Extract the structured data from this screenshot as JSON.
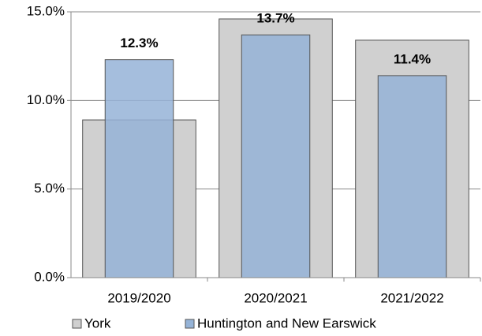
{
  "chart_data": {
    "type": "bar",
    "categories": [
      "2019/2020",
      "2020/2021",
      "2021/2022"
    ],
    "series": [
      {
        "name": "York",
        "color": "#d0d0d0",
        "values": [
          8.9,
          14.6,
          13.4
        ]
      },
      {
        "name": "Huntington and New Earswick",
        "color": "#95b3d7",
        "values": [
          12.3,
          13.7,
          11.4
        ],
        "value_labels": [
          "12.3%",
          "13.7%",
          "11.4%"
        ]
      }
    ],
    "ylim": [
      0,
      15
    ],
    "yticks": [
      {
        "value": 0,
        "label": "0.0%"
      },
      {
        "value": 5,
        "label": "5.0%"
      },
      {
        "value": 10,
        "label": "10.0%"
      },
      {
        "value": 15,
        "label": "15.0%"
      }
    ],
    "grid": true,
    "legend": "bottom"
  }
}
